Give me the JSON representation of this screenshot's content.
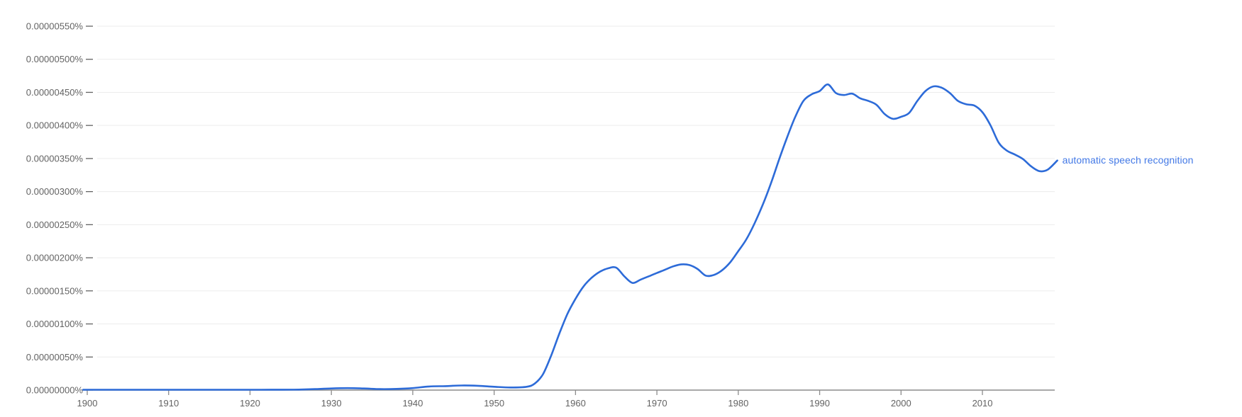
{
  "colors": {
    "line": "#2d6bd8",
    "series_label": "#4379e6",
    "axis_line": "#8c8c8c",
    "tick_text": "#636363",
    "gridline": "#ececec",
    "background": "#ffffff"
  },
  "chart_data": {
    "type": "line",
    "title": "",
    "xlabel": "",
    "ylabel": "",
    "grid": "horizontal-only",
    "legend_position": "right-of-line-end",
    "xlim": [
      1899.5,
      2019.5
    ],
    "ylim": [
      0,
      550
    ],
    "value_unit": "1e-8 percent (label 550 = 0.00000550%)",
    "x_ticks": [
      1900,
      1910,
      1920,
      1930,
      1940,
      1950,
      1960,
      1970,
      1980,
      1990,
      2000,
      2010
    ],
    "y_ticks": [
      {
        "value": 0,
        "label": "0.00000000%"
      },
      {
        "value": 50,
        "label": "0.00000050%"
      },
      {
        "value": 100,
        "label": "0.00000100%"
      },
      {
        "value": 150,
        "label": "0.00000150%"
      },
      {
        "value": 200,
        "label": "0.00000200%"
      },
      {
        "value": 250,
        "label": "0.00000250%"
      },
      {
        "value": 300,
        "label": "0.00000300%"
      },
      {
        "value": 350,
        "label": "0.00000350%"
      },
      {
        "value": 400,
        "label": "0.00000400%"
      },
      {
        "value": 450,
        "label": "0.00000450%"
      },
      {
        "value": 500,
        "label": "0.00000500%"
      },
      {
        "value": 550,
        "label": "0.00000550%"
      }
    ],
    "series": [
      {
        "name": "automatic speech recognition",
        "color": "#2d6bd8",
        "points": [
          [
            1899.5,
            0.5
          ],
          [
            1904,
            0.5
          ],
          [
            1908,
            0.5
          ],
          [
            1912,
            0.5
          ],
          [
            1916,
            0.5
          ],
          [
            1920,
            0.5
          ],
          [
            1924,
            0.6
          ],
          [
            1926,
            0.8
          ],
          [
            1928,
            1.5
          ],
          [
            1930,
            2.5
          ],
          [
            1932,
            3
          ],
          [
            1934,
            2.5
          ],
          [
            1936,
            1.5
          ],
          [
            1938,
            1.8
          ],
          [
            1940,
            3
          ],
          [
            1942,
            5.5
          ],
          [
            1944,
            6
          ],
          [
            1946,
            7
          ],
          [
            1948,
            6.5
          ],
          [
            1950,
            5
          ],
          [
            1952,
            4
          ],
          [
            1954,
            5
          ],
          [
            1955,
            10
          ],
          [
            1956,
            24
          ],
          [
            1957,
            52
          ],
          [
            1958,
            85
          ],
          [
            1959,
            115
          ],
          [
            1960,
            138
          ],
          [
            1961,
            157
          ],
          [
            1962,
            170
          ],
          [
            1963,
            179
          ],
          [
            1964,
            184
          ],
          [
            1965,
            185
          ],
          [
            1966,
            172
          ],
          [
            1967,
            162
          ],
          [
            1968,
            167
          ],
          [
            1969,
            172
          ],
          [
            1970,
            177
          ],
          [
            1971,
            182
          ],
          [
            1972,
            187
          ],
          [
            1973,
            190
          ],
          [
            1974,
            189
          ],
          [
            1975,
            183
          ],
          [
            1976,
            173
          ],
          [
            1977,
            174
          ],
          [
            1978,
            181
          ],
          [
            1979,
            193
          ],
          [
            1980,
            210
          ],
          [
            1981,
            228
          ],
          [
            1982,
            252
          ],
          [
            1983,
            280
          ],
          [
            1984,
            312
          ],
          [
            1985,
            348
          ],
          [
            1986,
            382
          ],
          [
            1987,
            413
          ],
          [
            1988,
            437
          ],
          [
            1989,
            447
          ],
          [
            1990,
            452
          ],
          [
            1991,
            462
          ],
          [
            1992,
            449
          ],
          [
            1993,
            446
          ],
          [
            1994,
            448
          ],
          [
            1995,
            441
          ],
          [
            1996,
            437
          ],
          [
            1997,
            431
          ],
          [
            1998,
            417
          ],
          [
            1999,
            410
          ],
          [
            2000,
            413
          ],
          [
            2001,
            419
          ],
          [
            2002,
            437
          ],
          [
            2003,
            452
          ],
          [
            2004,
            459
          ],
          [
            2005,
            457
          ],
          [
            2006,
            449
          ],
          [
            2007,
            437
          ],
          [
            2008,
            432
          ],
          [
            2009,
            430
          ],
          [
            2010,
            420
          ],
          [
            2011,
            400
          ],
          [
            2012,
            374
          ],
          [
            2013,
            362
          ],
          [
            2014,
            356
          ],
          [
            2015,
            349
          ],
          [
            2016,
            338
          ],
          [
            2017,
            331
          ],
          [
            2018,
            333
          ],
          [
            2019.2,
            347
          ]
        ]
      }
    ]
  }
}
